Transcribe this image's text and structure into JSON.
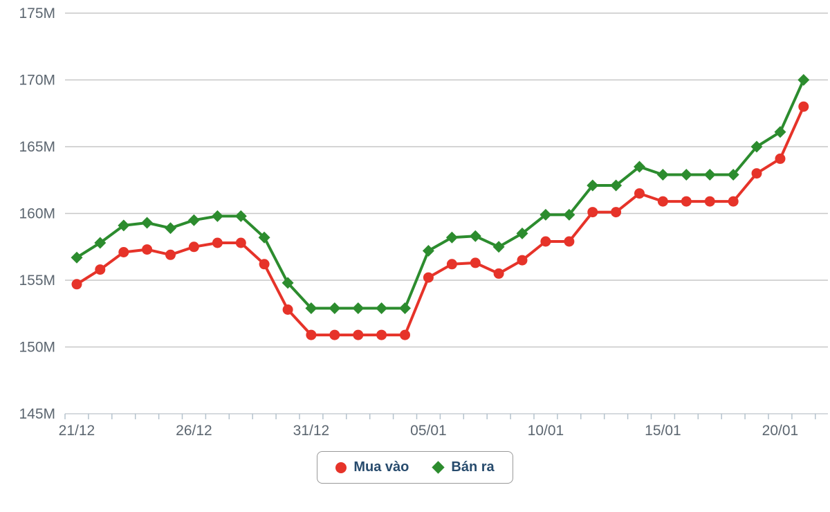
{
  "chart_data": {
    "type": "line",
    "title": "",
    "xlabel": "",
    "ylabel": "",
    "ylim": [
      145,
      175
    ],
    "y_tick_step": 5,
    "y_tick_values": [
      175,
      170,
      165,
      160,
      155,
      150,
      145
    ],
    "y_tick_labels": [
      "175M",
      "170M",
      "165M",
      "160M",
      "155M",
      "150M",
      "145M"
    ],
    "x_tick_label_positions": [
      0,
      5,
      10,
      15,
      20,
      25,
      30
    ],
    "x_tick_labels": [
      "21/12",
      "26/12",
      "31/12",
      "05/01",
      "10/01",
      "15/01",
      "20/01"
    ],
    "categories": [
      "21/12",
      "22/12",
      "23/12",
      "24/12",
      "25/12",
      "26/12",
      "27/12",
      "28/12",
      "29/12",
      "30/12",
      "31/12",
      "01/01",
      "02/01",
      "03/01",
      "04/01",
      "05/01",
      "06/01",
      "07/01",
      "08/01",
      "09/01",
      "10/01",
      "11/01",
      "12/01",
      "13/01",
      "14/01",
      "15/01",
      "16/01",
      "17/01",
      "18/01",
      "19/01",
      "20/01",
      "21/01"
    ],
    "series": [
      {
        "name": "Mua vào",
        "marker": "circle",
        "color": "#e63329",
        "values": [
          154.7,
          155.8,
          157.1,
          157.3,
          156.9,
          157.5,
          157.8,
          157.8,
          156.2,
          152.8,
          150.9,
          150.9,
          150.9,
          150.9,
          150.9,
          155.2,
          156.2,
          156.3,
          155.5,
          156.5,
          157.9,
          157.9,
          160.1,
          160.1,
          161.5,
          160.9,
          160.9,
          160.9,
          160.9,
          163.0,
          164.1,
          168.0
        ]
      },
      {
        "name": "Bán ra",
        "marker": "diamond",
        "color": "#2c8c2e",
        "values": [
          156.7,
          157.8,
          159.1,
          159.3,
          158.9,
          159.5,
          159.8,
          159.8,
          158.2,
          154.8,
          152.9,
          152.9,
          152.9,
          152.9,
          152.9,
          157.2,
          158.2,
          158.3,
          157.5,
          158.5,
          159.9,
          159.9,
          162.1,
          162.1,
          163.5,
          162.9,
          162.9,
          162.9,
          162.9,
          165.0,
          166.1,
          170.0
        ]
      }
    ],
    "grid": true,
    "legend_position": "bottom"
  },
  "colors": {
    "grid_line": "#c7c7c7",
    "axis_line": "#c9ced3",
    "tick_mark": "#b4c2cd",
    "axis_text": "#5c6670",
    "legend_text": "#274b6d",
    "legend_border": "#999999",
    "background": "#ffffff"
  }
}
